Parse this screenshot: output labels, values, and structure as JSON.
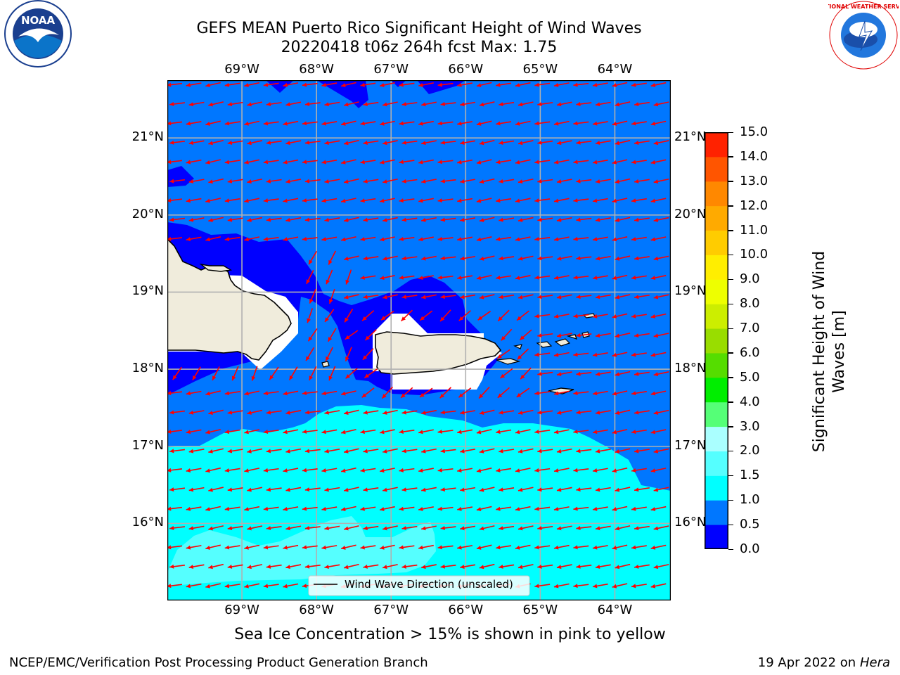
{
  "header": {
    "title_line1": "GEFS MEAN Puerto Rico Significant Height of Wind Waves",
    "title_line2": "20220418 t06z 264h fcst   Max: 1.75"
  },
  "logos": {
    "left": {
      "icon": "noaa-logo",
      "text": "NOAA"
    },
    "right": {
      "icon": "national-weather-service-logo",
      "text": "NATIONAL WEATHER SERVICE"
    }
  },
  "map": {
    "lon_labels": [
      "69°W",
      "68°W",
      "67°W",
      "66°W",
      "65°W",
      "64°W"
    ],
    "lat_labels": [
      "21°N",
      "20°N",
      "19°N",
      "18°N",
      "17°N",
      "16°N"
    ],
    "lon_range": [
      -70.0,
      -63.25
    ],
    "lat_range": [
      15.0,
      21.75
    ],
    "legend_label": "Wind Wave Direction (unscaled)",
    "vector_color": "#ff0000",
    "land_color": "#f0ecdc",
    "grid": true
  },
  "colorbar": {
    "label": "Significant Height of Wind Waves [m]",
    "label_line1": "Significant Height of Wind",
    "label_line2": "Waves [m]",
    "ticks": [
      "15.0",
      "14.0",
      "13.0",
      "12.0",
      "11.0",
      "10.0",
      "9.0",
      "8.0",
      "7.0",
      "6.0",
      "5.0",
      "4.0",
      "3.0",
      "2.0",
      "1.5",
      "1.0",
      "0.5",
      "0.0"
    ],
    "levels": [
      0.0,
      0.5,
      1.0,
      1.5,
      2.0,
      3.0,
      4.0,
      5.0,
      6.0,
      7.0,
      8.0,
      9.0,
      10.0,
      11.0,
      12.0,
      13.0,
      14.0,
      15.0
    ],
    "colors": [
      "#0000ff",
      "#0077ff",
      "#00ffff",
      "#55ffff",
      "#aaffff",
      "#55ff77",
      "#00ee00",
      "#55dd00",
      "#99dd00",
      "#ccee00",
      "#eeff00",
      "#ffee00",
      "#ffcc00",
      "#ffaa00",
      "#ff8800",
      "#ff5500",
      "#ff2200",
      "#ff0000"
    ]
  },
  "notes": {
    "sea_ice": "Sea Ice Concentration > 15% is shown in pink to yellow",
    "footer_left": "NCEP/EMC/Verification Post Processing Product Generation Branch",
    "footer_right_date": "19 Apr 2022 on ",
    "footer_right_host": "Hera"
  }
}
